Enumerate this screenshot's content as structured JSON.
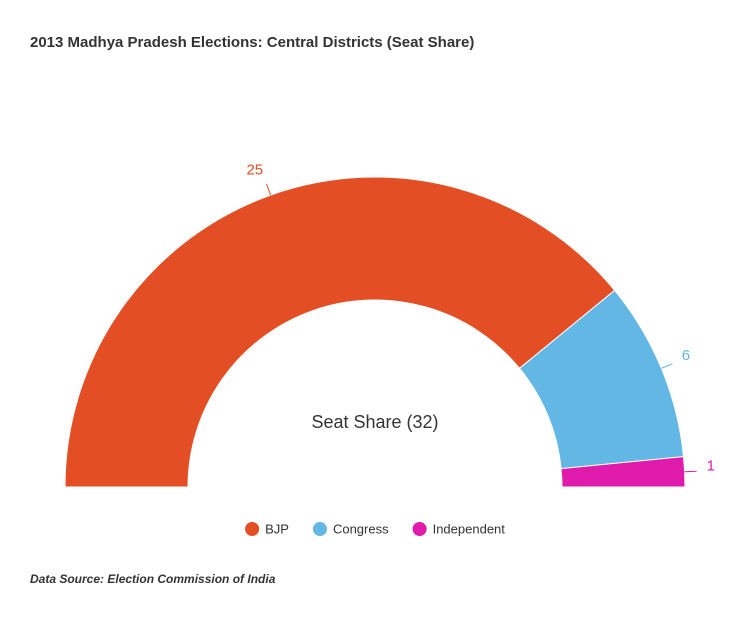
{
  "chart_data": {
    "type": "semi-donut",
    "title": "2013 Madhya Pradesh Elections: Central Districts (Seat Share)",
    "center_label": "Seat Share (32)",
    "categories": [
      "BJP",
      "Congress",
      "Independent"
    ],
    "values": [
      25,
      6,
      1
    ],
    "colors": [
      "#e44e24",
      "#62b7e4",
      "#e01aab"
    ],
    "legend": "bottom",
    "source": "Data Source: Election Commission of India"
  }
}
